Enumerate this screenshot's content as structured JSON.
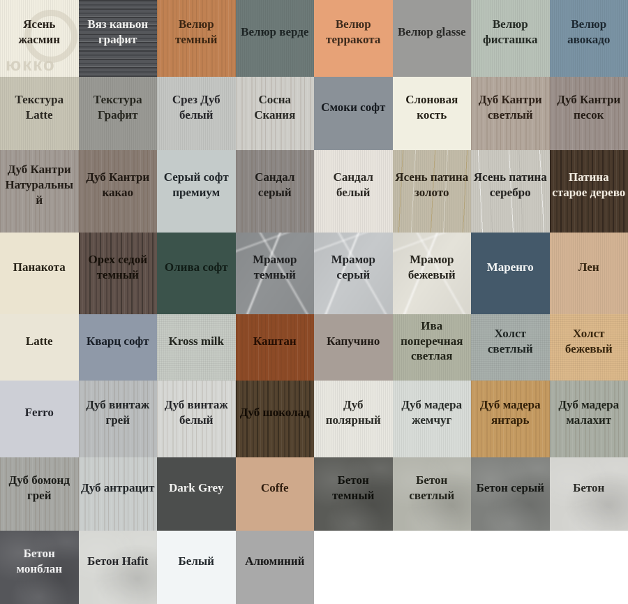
{
  "watermark": {
    "text": "юкко"
  },
  "grid": {
    "columns": 8,
    "rows": [
      {
        "height": 110,
        "cells": [
          {
            "label": "Ясень жасмин",
            "bg": "#f1eee1",
            "fg": "#262019",
            "tex": "fine"
          },
          {
            "label": "Вяз каньон графит",
            "bg": "#54565a",
            "fg": "#f2f2f0",
            "tex": "wood-h"
          },
          {
            "label": "Велюр темный",
            "bg": "#c08152",
            "fg": "#3a2512",
            "tex": "wood"
          },
          {
            "label": "Велюр верде",
            "bg": "#6d7a78",
            "fg": "#1d2424",
            "tex": "fine"
          },
          {
            "label": "Велюр терракота",
            "bg": "#e7a277",
            "fg": "#3c2a1c",
            "tex": "plain"
          },
          {
            "label": "Велюр glasse",
            "bg": "#9b9b99",
            "fg": "#2a2a28",
            "tex": "plain"
          },
          {
            "label": "Велюр фисташка",
            "bg": "#b8c2b8",
            "fg": "#242a24",
            "tex": "fine"
          },
          {
            "label": "Велюр авокадо",
            "bg": "#7a93a4",
            "fg": "#1c2730",
            "tex": "fine"
          }
        ]
      },
      {
        "height": 105,
        "cells": [
          {
            "label": "Текстура Latte",
            "bg": "#c7c4b4",
            "fg": "#2b2822",
            "tex": "fine"
          },
          {
            "label": "Текстура Графит",
            "bg": "#999994",
            "fg": "#26261f",
            "tex": "fine"
          },
          {
            "label": "Срез Дуб белый",
            "bg": "#c4c6c3",
            "fg": "#26262a",
            "tex": "fine"
          },
          {
            "label": "Сосна Скания",
            "bg": "#cecdc8",
            "fg": "#2a2a26",
            "tex": "wood"
          },
          {
            "label": "Смоки софт",
            "bg": "#8a9198",
            "fg": "#15191e",
            "tex": "plain"
          },
          {
            "label": "Слоновая кость",
            "bg": "#f1efe1",
            "fg": "#262219",
            "tex": "plain"
          },
          {
            "label": "Дуб Кантри светлый",
            "bg": "#b2a69b",
            "fg": "#2d2118",
            "tex": "wood"
          },
          {
            "label": "Дуб Кантри песок",
            "bg": "#9a8f8a",
            "fg": "#241c15",
            "tex": "wood"
          }
        ]
      },
      {
        "height": 118,
        "cells": [
          {
            "label": "Дуб Кантри Натуральный",
            "bg": "#a19a94",
            "fg": "#231d17",
            "tex": "wood"
          },
          {
            "label": "Дуб Кантри какао",
            "bg": "#887b72",
            "fg": "#1f1812",
            "tex": "wood"
          },
          {
            "label": "Серый софт премиум",
            "bg": "#c4cbca",
            "fg": "#20262a",
            "tex": "plain"
          },
          {
            "label": "Сандал серый",
            "bg": "#8c8784",
            "fg": "#1d1b18",
            "tex": "wood"
          },
          {
            "label": "Сандал белый",
            "bg": "#e8e4dd",
            "fg": "#2a2722",
            "tex": "fine"
          },
          {
            "label": "Ясень патина золото",
            "bg": "#c2bba8",
            "fg": "#282116",
            "tex": "wood-gold"
          },
          {
            "label": "Ясень патина серебро",
            "bg": "#cac8c0",
            "fg": "#21201e",
            "tex": "wood-silver"
          },
          {
            "label": "Патина старое дерево",
            "bg": "#4a3a2c",
            "fg": "#f3ede2",
            "tex": "wood-dark"
          }
        ]
      },
      {
        "height": 117,
        "cells": [
          {
            "label": "Панакота",
            "bg": "#ebe4d0",
            "fg": "#272217",
            "tex": "plain"
          },
          {
            "label": "Орех седой темный",
            "bg": "#60514a",
            "fg": "#161009",
            "tex": "wood-dark"
          },
          {
            "label": "Олива софт",
            "bg": "#3b534b",
            "fg": "#101c16",
            "tex": "plain"
          },
          {
            "label": "Мрамор темный",
            "bg": "#8f9294",
            "fg": "#1e1f20",
            "tex": "marble"
          },
          {
            "label": "Мрамор серый",
            "bg": "#c6c9cb",
            "fg": "#232527",
            "tex": "marble"
          },
          {
            "label": "Мрамор бежевый",
            "bg": "#e4e2d9",
            "fg": "#27251e",
            "tex": "marble"
          },
          {
            "label": "Маренго",
            "bg": "#44596a",
            "fg": "#f2f4f4",
            "tex": "plain"
          },
          {
            "label": "Лен",
            "bg": "#d3b394",
            "fg": "#33230f",
            "tex": "fine"
          }
        ]
      },
      {
        "height": 95,
        "cells": [
          {
            "label": "Latte",
            "bg": "#eae5d6",
            "fg": "#282318",
            "tex": "plain"
          },
          {
            "label": "Кварц софт",
            "bg": "#8f99a8",
            "fg": "#171d26",
            "tex": "plain"
          },
          {
            "label": "Kross milk",
            "bg": "#c6cbc4",
            "fg": "#23261f",
            "tex": "canvas"
          },
          {
            "label": "Каштан",
            "bg": "#8c4a26",
            "fg": "#250e02",
            "tex": "wood"
          },
          {
            "label": "Капучино",
            "bg": "#a89e97",
            "fg": "#221c17",
            "tex": "plain"
          },
          {
            "label": "Ива поперечная светлая",
            "bg": "#b0b3a2",
            "fg": "#23251a",
            "tex": "fine"
          },
          {
            "label": "Холст светлый",
            "bg": "#a8b0ac",
            "fg": "#1e2422",
            "tex": "canvas"
          },
          {
            "label": "Холст бежевый",
            "bg": "#dcb98b",
            "fg": "#38260e",
            "tex": "canvas"
          }
        ]
      },
      {
        "height": 110,
        "cells": [
          {
            "label": "Ferro",
            "bg": "#cdcfd6",
            "fg": "#23252c",
            "tex": "plain"
          },
          {
            "label": "Дуб винтаж грей",
            "bg": "#b9bcbd",
            "fg": "#212425",
            "tex": "wood"
          },
          {
            "label": "Дуб винтаж белый",
            "bg": "#d6d7d4",
            "fg": "#26272a",
            "tex": "wood"
          },
          {
            "label": "Дуб шоколад",
            "bg": "#54432f",
            "fg": "#120b04",
            "tex": "wood-dark"
          },
          {
            "label": "Дуб полярный",
            "bg": "#e8e7e0",
            "fg": "#2a2a25",
            "tex": "fine"
          },
          {
            "label": "Дуб мадера жемчуг",
            "bg": "#d8dcd8",
            "fg": "#272b28",
            "tex": "fine"
          },
          {
            "label": "Дуб мадера янтарь",
            "bg": "#c49a61",
            "fg": "#311f08",
            "tex": "wood"
          },
          {
            "label": "Дуб мадера малахит",
            "bg": "#a8ada3",
            "fg": "#20241c",
            "tex": "wood"
          }
        ]
      },
      {
        "height": 105,
        "cells": [
          {
            "label": "Дуб бомонд грей",
            "bg": "#a6a7a3",
            "fg": "#1d1e1a",
            "tex": "wood"
          },
          {
            "label": "Дуб антрацит",
            "bg": "#c9cdcc",
            "fg": "#23272a",
            "tex": "wood"
          },
          {
            "label": "Dark Grey",
            "bg": "#4c4e4d",
            "fg": "#f4f4f2",
            "tex": "plain"
          },
          {
            "label": "Coffe",
            "bg": "#cfa98b",
            "fg": "#2f1d0e",
            "tex": "plain"
          },
          {
            "label": "Бетон темный",
            "bg": "#5a5b57",
            "fg": "#0f100c",
            "tex": "concrete"
          },
          {
            "label": "Бетон светлый",
            "bg": "#b2b3aa",
            "fg": "#23241c",
            "tex": "concrete"
          },
          {
            "label": "Бетон серый",
            "bg": "#7e807d",
            "fg": "#141613",
            "tex": "concrete"
          },
          {
            "label": "Бетон",
            "bg": "#d3d3cf",
            "fg": "#2a2a26",
            "tex": "concrete"
          }
        ]
      },
      {
        "height": 105,
        "cells": [
          {
            "label": "Бетон монблан",
            "bg": "#55565a",
            "fg": "#f2f2f2",
            "tex": "concrete"
          },
          {
            "label": "Бетон Hafit",
            "bg": "#d6d7d3",
            "fg": "#26272a",
            "tex": "concrete"
          },
          {
            "label": "Белый",
            "bg": "#f2f5f6",
            "fg": "#22282c",
            "tex": "plain"
          },
          {
            "label": "Алюминий",
            "bg": "#a9a9a9",
            "fg": "#181818",
            "tex": "plain"
          }
        ]
      }
    ]
  }
}
